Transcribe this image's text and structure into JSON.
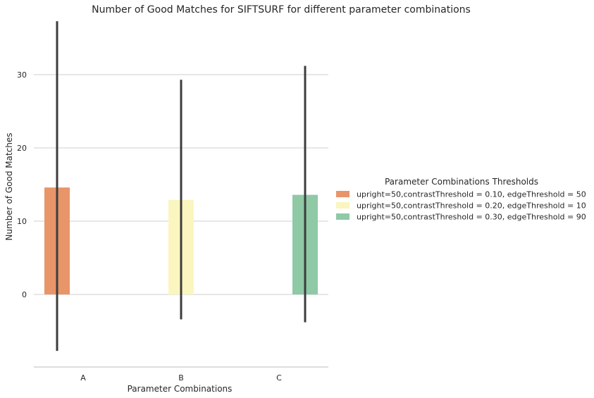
{
  "chart_data": {
    "type": "bar",
    "title": "Number of Good Matches for SIFTSURF for different parameter combinations",
    "xlabel": "Parameter Combinations",
    "ylabel": "Number of Good Matches",
    "categories": [
      "A",
      "B",
      "C"
    ],
    "yticks": [
      0,
      10,
      20,
      30
    ],
    "ylim": [
      -10,
      38
    ],
    "grid": "horizontal",
    "legend_placement": "right",
    "legend_title": "Parameter Combinations Thresholds",
    "series": [
      {
        "name": "upright=50,contrastThreshold = 0.10, edgeThreshold = 50",
        "category": "A",
        "value": 14.6,
        "error_low": -7.7,
        "error_high": 37.3,
        "color": "#e8956a"
      },
      {
        "name": "upright=50,contrastThreshold = 0.20, edgeThreshold = 10",
        "category": "B",
        "value": 12.9,
        "error_low": -3.4,
        "error_high": 29.3,
        "color": "#fbf5bf"
      },
      {
        "name": "upright=50,contrastThreshold = 0.30, edgeThreshold = 90",
        "category": "C",
        "value": 13.6,
        "error_low": -3.8,
        "error_high": 31.2,
        "color": "#8fc9a6"
      }
    ],
    "errorbar_color": "#3d3d3d"
  }
}
